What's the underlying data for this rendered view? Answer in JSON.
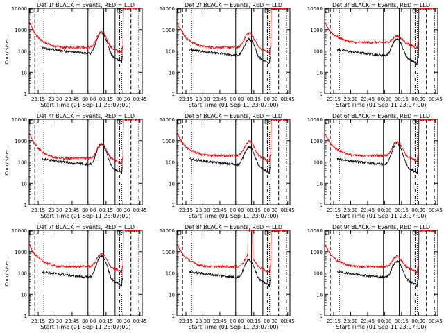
{
  "chart_data": {
    "type": "line",
    "layout": "3x3 grid of panels",
    "panels": [
      {
        "title": "Det 1f BLACK = Events, RED = LLD",
        "xlabel": "Start Time (01-Sep-11 23:07:00)",
        "ylabel": "Counts/sec",
        "events_flare_peak": 700,
        "lld_flare_peak": 800,
        "events_base": 60,
        "lld_base": 150,
        "lld_start": 2000,
        "has_spike": false
      },
      {
        "title": "Det 2f BLACK = Events, RED = LLD",
        "xlabel": "Start Time (01-Sep-11 23:07:00)",
        "ylabel": "",
        "events_flare_peak": 350,
        "lld_flare_peak": 700,
        "events_base": 50,
        "lld_base": 150,
        "lld_start": 2000,
        "has_spike": false
      },
      {
        "title": "Det 3f BLACK = Events, RED = LLD",
        "xlabel": "Start Time (01-Sep-11 23:07:00)",
        "ylabel": "",
        "events_flare_peak": 350,
        "lld_flare_peak": 500,
        "events_base": 50,
        "lld_base": 250,
        "lld_start": 2000,
        "has_spike": false
      },
      {
        "title": "Det 4f BLACK = Events, RED = LLD",
        "xlabel": "Start Time (01-Sep-11 23:07:00)",
        "ylabel": "Counts/sec",
        "events_flare_peak": 650,
        "lld_flare_peak": 700,
        "events_base": 60,
        "lld_base": 150,
        "lld_start": 2000,
        "has_spike": false
      },
      {
        "title": "Det 5f BLACK = Events, RED = LLD",
        "xlabel": "Start Time (01-Sep-11 23:07:00)",
        "ylabel": "",
        "events_flare_peak": 500,
        "lld_flare_peak": 900,
        "events_base": 60,
        "lld_base": 200,
        "lld_start": 2000,
        "has_spike": false
      },
      {
        "title": "Det 6f BLACK = Events, RED = LLD",
        "xlabel": "Start Time (01-Sep-11 23:07:00)",
        "ylabel": "",
        "events_flare_peak": 700,
        "lld_flare_peak": 900,
        "events_base": 60,
        "lld_base": 200,
        "lld_start": 2000,
        "has_spike": false
      },
      {
        "title": "Det 7f BLACK = Events, RED = LLD",
        "xlabel": "Start Time (01-Sep-11 23:07:00)",
        "ylabel": "Counts/sec",
        "events_flare_peak": 600,
        "lld_flare_peak": 800,
        "events_base": 50,
        "lld_base": 200,
        "lld_start": 2000,
        "has_spike": false
      },
      {
        "title": "Det 8f BLACK = Events, RED = LLD",
        "xlabel": "Start Time (01-Sep-11 23:07:00)",
        "ylabel": "",
        "events_flare_peak": 400,
        "lld_flare_peak": 700,
        "events_base": 50,
        "lld_base": 200,
        "lld_start": 2000,
        "has_spike": true
      },
      {
        "title": "Det 9f BLACK = Events, RED = LLD",
        "xlabel": "Start Time (01-Sep-11 23:07:00)",
        "ylabel": "",
        "events_flare_peak": 350,
        "lld_flare_peak": 600,
        "events_base": 50,
        "lld_base": 200,
        "lld_start": 2000,
        "has_spike": false
      }
    ],
    "x_ticks": [
      "23:15",
      "23:30",
      "23:45",
      "00:00",
      "00:15",
      "00:30",
      "00:45"
    ],
    "x_tick_minutes": [
      8,
      23,
      38,
      53,
      68,
      83,
      98
    ],
    "xlim_minutes": [
      0,
      100
    ],
    "y_scale": "log",
    "y_ticks": [
      "1",
      "10",
      "100",
      "1000",
      "10000"
    ],
    "y_tick_values": [
      1,
      10,
      100,
      1000,
      10000
    ],
    "ylim": [
      1,
      10000
    ],
    "vertical_markers_minutes": {
      "dashed": [
        5,
        90
      ],
      "dotted": [
        13,
        82
      ],
      "solid": [
        52,
        66,
        76
      ],
      "dashdot": [
        80,
        97
      ]
    },
    "series": [
      {
        "name": "Events",
        "color": "#000000"
      },
      {
        "name": "LLD",
        "color": "#ff0000"
      }
    ]
  }
}
